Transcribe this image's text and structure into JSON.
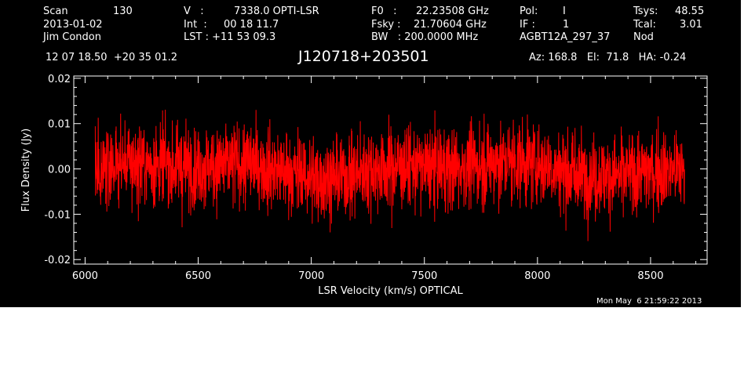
{
  "header": {
    "row1": [
      {
        "label": "Scan",
        "value": "130"
      },
      {
        "label": "V   :",
        "value": "7338.0 OPTI-LSR"
      },
      {
        "label": "F0   :",
        "value": "22.23508 GHz"
      },
      {
        "label": "Pol:",
        "value": "I"
      },
      {
        "label": "Tsys:",
        "value": "48.55"
      }
    ],
    "row2": [
      {
        "text": "2013-01-02"
      },
      {
        "label": "Int  :",
        "value": "00 18 11.7"
      },
      {
        "label": "Fsky :",
        "value": "21.70604 GHz"
      },
      {
        "label": "IF :",
        "value": "1"
      },
      {
        "label": "Tcal:",
        "value": "3.01"
      }
    ],
    "row3": [
      {
        "text": "Jim Condon"
      },
      {
        "text": "LST : +11 53 09.3"
      },
      {
        "text": "BW   : 200.0000 MHz"
      },
      {
        "text": "AGBT12A_297_37"
      },
      {
        "text": "Nod"
      }
    ],
    "coords": "12 07 18.50  +20 35 01.2",
    "source": "J120718+203501",
    "az_el_ha": "Az: 168.8   El:  71.8   HA: -0.24",
    "timestamp": "Mon May  6 21:59:22 2013"
  },
  "chart_data": {
    "type": "line",
    "title": "J120718+203501",
    "xlabel": "LSR Velocity (km/s) OPTICAL",
    "ylabel": "Flux Density (Jy)",
    "xlim": [
      5950,
      8750
    ],
    "ylim": [
      -0.021,
      0.0205
    ],
    "xticks": [
      6000,
      6500,
      7000,
      7500,
      8000,
      8500
    ],
    "xtick_labels": [
      "6000",
      "6500",
      "7000",
      "7500",
      "8000",
      "8500"
    ],
    "yticks": [
      -0.02,
      -0.01,
      0.0,
      0.01,
      0.02
    ],
    "ytick_labels": [
      "-0.02",
      "-0.01",
      "0.00",
      "0.01",
      "0.02"
    ],
    "x_range": [
      6045,
      8650
    ],
    "noise_rms": 0.0045,
    "series": [
      {
        "color": "#ff0000",
        "mean_level": 0.0,
        "notes": "noise-dominated spectrum centred on 0.00 Jy, peaks to about +0.014 and troughs to about -0.016"
      }
    ]
  }
}
